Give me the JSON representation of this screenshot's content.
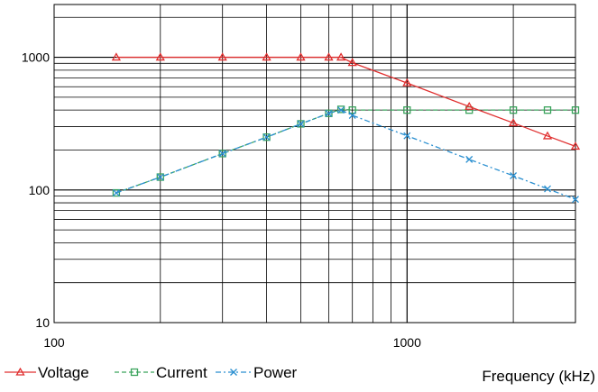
{
  "chart_data": {
    "type": "line",
    "title": "",
    "xlabel": "Frequency (kHz)",
    "ylabel": "",
    "xscale": "log",
    "yscale": "log",
    "xlim": [
      100,
      3000
    ],
    "ylim": [
      10,
      2500
    ],
    "grid": true,
    "legend_position": "bottom-left",
    "x_tick_labels": [
      "100",
      "1000"
    ],
    "y_tick_labels": [
      "10",
      "100",
      "1000"
    ],
    "series": [
      {
        "name": "Voltage",
        "color": "#e03030",
        "marker": "triangle",
        "dash": "solid",
        "x": [
          150,
          200,
          300,
          400,
          500,
          600,
          650,
          700,
          1000,
          1500,
          2000,
          2500,
          3000
        ],
        "y": [
          1000,
          1000,
          1000,
          1000,
          1000,
          1000,
          1000,
          910,
          640,
          425,
          320,
          255,
          213
        ]
      },
      {
        "name": "Current",
        "color": "#3aa35c",
        "marker": "square",
        "dash": "dashed",
        "x": [
          150,
          200,
          300,
          400,
          500,
          600,
          650,
          700,
          1000,
          1500,
          2000,
          2500,
          3000
        ],
        "y": [
          95,
          125,
          188,
          250,
          315,
          378,
          405,
          400,
          400,
          400,
          400,
          400,
          400
        ]
      },
      {
        "name": "Power",
        "color": "#2a8fd0",
        "marker": "x",
        "dash": "dashdot",
        "x": [
          150,
          200,
          300,
          400,
          500,
          600,
          650,
          700,
          1000,
          1500,
          2000,
          2500,
          3000
        ],
        "y": [
          95,
          125,
          188,
          250,
          315,
          378,
          400,
          365,
          256,
          170,
          128,
          102,
          85
        ]
      }
    ]
  }
}
